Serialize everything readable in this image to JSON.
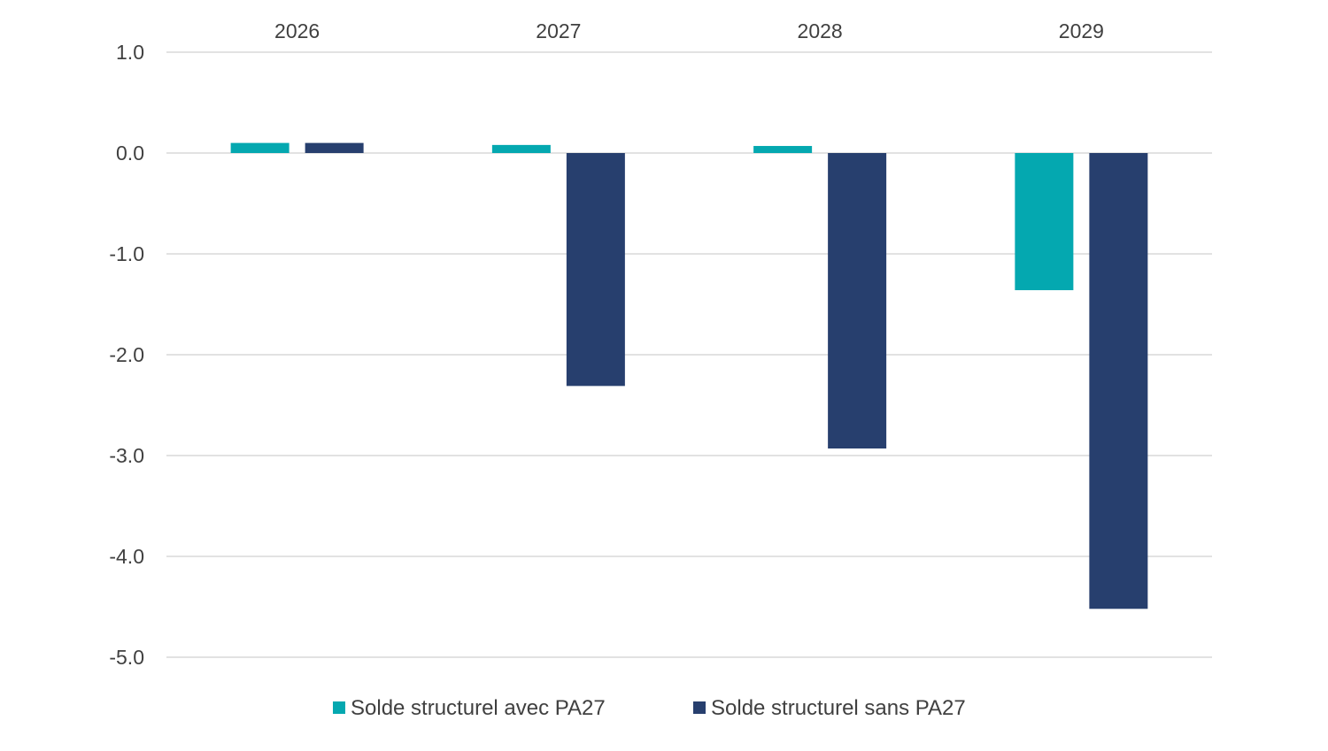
{
  "chart_data": {
    "type": "bar",
    "categories": [
      "2026",
      "2027",
      "2028",
      "2029"
    ],
    "series": [
      {
        "name": "Solde structurel avec PA27",
        "color": "#04A8B0",
        "values": [
          0.1,
          0.08,
          0.07,
          -1.36
        ]
      },
      {
        "name": "Solde structurel sans PA27",
        "color": "#273F6E",
        "values": [
          0.1,
          -2.31,
          -2.93,
          -4.52
        ]
      }
    ],
    "ylim": [
      -5.0,
      1.0
    ],
    "yticks": [
      "1.0",
      "0.0",
      "-1.0",
      "-2.0",
      "-3.0",
      "-4.0",
      "-5.0"
    ],
    "category_axis_position": "top",
    "grid": true,
    "legend": "bottom",
    "title": "",
    "xlabel": "",
    "ylabel": ""
  }
}
